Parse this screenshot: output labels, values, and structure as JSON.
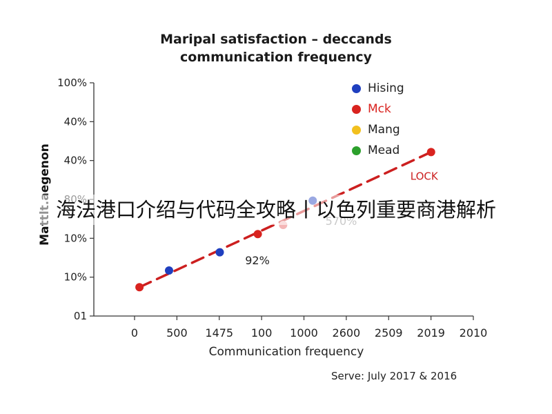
{
  "chart_data": {
    "type": "scatter",
    "title_line1": "Maripal satisfaction – deccands",
    "title_line2": "communication frequency",
    "xlabel": "Communication frequency",
    "ylabel": "Mattlt.aegenon",
    "source": "Serve: July 2017 & 2016",
    "y_tick_labels": [
      "01",
      "10%",
      "10%",
      "80%",
      "40%",
      "40%",
      "100%"
    ],
    "x_tick_labels": [
      "0",
      "500",
      "1475",
      "100",
      "1000",
      "2600",
      "2509",
      "2019",
      "2010"
    ],
    "series": [
      {
        "name": "Hising",
        "color": "#1f3fbf",
        "points": [
          [
            0.8,
            1
          ],
          [
            2.0,
            1.6
          ],
          [
            4.2,
            3.3
          ]
        ]
      },
      {
        "name": "Mck",
        "color": "#d9231f",
        "points": [
          [
            0.1,
            0.45
          ],
          [
            2.9,
            2.2
          ],
          [
            7.0,
            4.9
          ]
        ]
      },
      {
        "name": "Mang",
        "color": "#f2c01e",
        "points": []
      },
      {
        "name": "Mead",
        "color": "#2ca02c",
        "points": []
      }
    ],
    "faded_points": [
      [
        3.5,
        2.5
      ]
    ],
    "trendline": {
      "from": [
        0.1,
        0.45
      ],
      "to": [
        7.0,
        4.9
      ],
      "color": "#cc1f1f",
      "label": "LOCK"
    },
    "annotations": [
      {
        "text": "92%",
        "x": 2.6,
        "y": 1.2
      },
      {
        "text": "570%",
        "x": 4.5,
        "y": 2.5
      }
    ],
    "xlim": [
      0,
      8
    ],
    "ylim": [
      0,
      7
    ],
    "grid": false,
    "legend_position": "top-right"
  },
  "overlay_banner": "海法港口介绍与代码全攻略丨以色列重要商港解析"
}
